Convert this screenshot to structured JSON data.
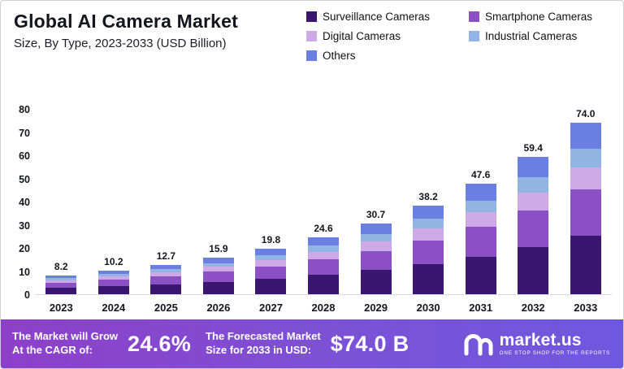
{
  "header": {
    "title": "Global AI Camera Market",
    "subtitle": "Size, By Type, 2023-2033 (USD Billion)"
  },
  "legend": [
    {
      "label": "Surveillance Cameras",
      "color": "#3a1670",
      "icon": "swatch-dark-purple"
    },
    {
      "label": "Smartphone Cameras",
      "color": "#8b51c4",
      "icon": "swatch-medium-purple"
    },
    {
      "label": "Digital Cameras",
      "color": "#cdaae6",
      "icon": "swatch-light-lavender"
    },
    {
      "label": "Industrial Cameras",
      "color": "#92b4e2",
      "icon": "swatch-light-blue"
    },
    {
      "label": "Others",
      "color": "#6b7ee2",
      "icon": "swatch-periwinkle"
    }
  ],
  "chart_data": {
    "type": "bar",
    "stacked": true,
    "title": "Global AI Camera Market Size, By Type, 2023-2033 (USD Billion)",
    "xlabel": "",
    "ylabel": "",
    "ylim": [
      0,
      80
    ],
    "yticks": [
      0,
      10,
      20,
      30,
      40,
      50,
      60,
      70,
      80
    ],
    "grid": false,
    "legend_position": "top-right",
    "categories": [
      "2023",
      "2024",
      "2025",
      "2026",
      "2027",
      "2028",
      "2029",
      "2030",
      "2031",
      "2032",
      "2033"
    ],
    "totals": [
      "8.2",
      "10.2",
      "12.7",
      "15.9",
      "19.8",
      "24.6",
      "30.7",
      "38.2",
      "47.6",
      "59.4",
      "74.0"
    ],
    "series": [
      {
        "name": "Surveillance Cameras",
        "values": [
          2.8,
          3.5,
          4.3,
          5.4,
          6.7,
          8.4,
          10.4,
          13.0,
          16.2,
          20.2,
          25.2
        ]
      },
      {
        "name": "Smartphone Cameras",
        "values": [
          2.2,
          2.8,
          3.4,
          4.3,
          5.3,
          6.6,
          8.3,
          10.3,
          12.9,
          16.0,
          20.0
        ]
      },
      {
        "name": "Digital Cameras",
        "values": [
          1.1,
          1.3,
          1.7,
          2.1,
          2.6,
          3.2,
          4.0,
          5.0,
          6.2,
          7.7,
          9.6
        ]
      },
      {
        "name": "Industrial Cameras",
        "values": [
          0.9,
          1.1,
          1.4,
          1.7,
          2.2,
          2.7,
          3.4,
          4.2,
          5.2,
          6.5,
          8.1
        ]
      },
      {
        "name": "Others",
        "values": [
          1.2,
          1.5,
          1.9,
          2.4,
          3.0,
          3.7,
          4.6,
          5.7,
          7.1,
          9.0,
          11.1
        ]
      }
    ]
  },
  "banner": {
    "cagr_line1": "The Market will Grow",
    "cagr_line2": "At the CAGR of:",
    "cagr_value": "24.6%",
    "forecast_line1": "The Forecasted Market",
    "forecast_line2": "Size for 2033 in USD:",
    "forecast_value": "$74.0 B",
    "brand_name": "market.us",
    "brand_tagline": "ONE STOP SHOP FOR THE REPORTS",
    "accent_gradient": [
      "#8e3fc9",
      "#6e58de"
    ]
  }
}
